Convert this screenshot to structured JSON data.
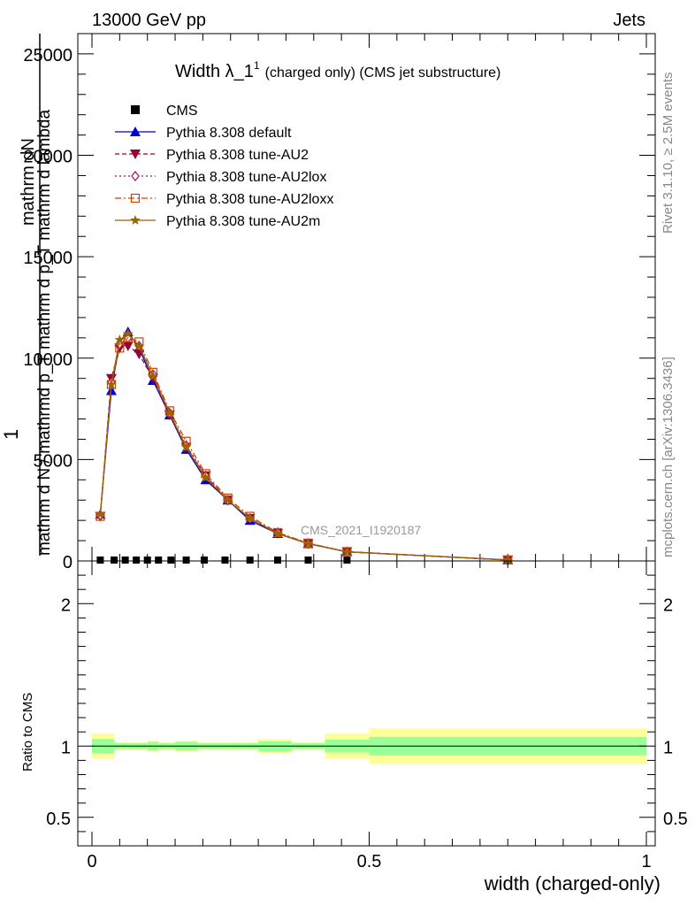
{
  "header": {
    "left": "13000 GeV pp",
    "right": "Jets"
  },
  "side_labels": {
    "rivet": "Rivet 3.1.10, ≥ 2.5M events",
    "mcplots": "mcplots.cern.ch [arXiv:1306.3436]"
  },
  "chart_data": [
    {
      "type": "line",
      "title": "Width λ_1",
      "title_sup": "1",
      "title_suffix": "(charged only) (CMS jet substructure)",
      "watermark": "CMS_2021_I1920187",
      "ylabel": {
        "prefix": "1",
        "numerator": "mathrm dN",
        "denominator": "mathrm d N / mathrmd p_T mathrm d p_T mathrm d lambda"
      },
      "ylim": [
        0,
        26000
      ],
      "yticks": [
        0,
        5000,
        10000,
        15000,
        20000,
        25000
      ],
      "ytick_labels": [
        "0",
        "5000",
        "10000",
        "15000",
        "20000",
        "25000"
      ],
      "xlim": [
        0,
        1
      ],
      "legend_position": "top-left",
      "bin_edges": [
        0,
        0.03,
        0.05,
        0.07,
        0.09,
        0.11,
        0.13,
        0.155,
        0.185,
        0.22,
        0.26,
        0.31,
        0.36,
        0.42,
        0.5,
        1.0
      ],
      "cms_x": [
        0.015,
        0.04,
        0.06,
        0.08,
        0.1,
        0.12,
        0.1425,
        0.17,
        0.2025,
        0.24,
        0.285,
        0.335,
        0.39,
        0.46
      ],
      "series": [
        {
          "name": "CMS",
          "color": "#000000",
          "marker": "square",
          "x": [
            0.015,
            0.04,
            0.06,
            0.08,
            0.1,
            0.12,
            0.1425,
            0.17,
            0.2025,
            0.24,
            0.285,
            0.335,
            0.39,
            0.46
          ],
          "values": [
            0,
            0,
            0,
            0,
            0,
            0,
            0,
            0,
            0,
            0,
            0,
            0,
            0,
            0
          ]
        },
        {
          "name": "Pythia 8.308 default",
          "color": "#0000cc",
          "marker": "triangle-up",
          "dash": "",
          "x": [
            0.015,
            0.035,
            0.05,
            0.065,
            0.085,
            0.11,
            0.14,
            0.17,
            0.205,
            0.245,
            0.285,
            0.335,
            0.39,
            0.46,
            0.75
          ],
          "values": [
            2300,
            8400,
            10800,
            11300,
            10500,
            8900,
            7200,
            5500,
            4000,
            3000,
            2000,
            1350,
            850,
            450,
            50
          ]
        },
        {
          "name": "Pythia 8.308 tune-AU2",
          "color": "#990033",
          "marker": "triangle-down",
          "dash": "5,3",
          "x": [
            0.015,
            0.035,
            0.05,
            0.065,
            0.085,
            0.11,
            0.14,
            0.17,
            0.205,
            0.245,
            0.285,
            0.335,
            0.39,
            0.46,
            0.75
          ],
          "values": [
            2200,
            9000,
            10500,
            10600,
            10200,
            9000,
            7200,
            5600,
            4200,
            3000,
            2100,
            1350,
            850,
            450,
            50
          ]
        },
        {
          "name": "Pythia 8.308 tune-AU2lox",
          "color": "#aa1155",
          "marker": "diamond-open",
          "dash": "2,3",
          "x": [
            0.015,
            0.035,
            0.05,
            0.065,
            0.085,
            0.11,
            0.14,
            0.17,
            0.205,
            0.245,
            0.285,
            0.335,
            0.39,
            0.46,
            0.75
          ],
          "values": [
            2250,
            8800,
            10700,
            11000,
            10600,
            9200,
            7300,
            5700,
            4200,
            3000,
            2100,
            1400,
            870,
            460,
            50
          ]
        },
        {
          "name": "Pythia 8.308 tune-AU2loxx",
          "color": "#cc4400",
          "marker": "square-open",
          "dash": "7,3,2,3",
          "x": [
            0.015,
            0.035,
            0.05,
            0.065,
            0.085,
            0.11,
            0.14,
            0.17,
            0.205,
            0.245,
            0.285,
            0.335,
            0.39,
            0.46,
            0.75
          ],
          "values": [
            2200,
            8700,
            10500,
            11000,
            10800,
            9300,
            7400,
            5900,
            4300,
            3100,
            2200,
            1400,
            880,
            460,
            50
          ]
        },
        {
          "name": "Pythia 8.308 tune-AU2m",
          "color": "#996600",
          "marker": "star",
          "dash": "",
          "x": [
            0.015,
            0.035,
            0.05,
            0.065,
            0.085,
            0.11,
            0.14,
            0.17,
            0.205,
            0.245,
            0.285,
            0.335,
            0.39,
            0.46,
            0.75
          ],
          "values": [
            2300,
            8700,
            10900,
            11200,
            10600,
            9100,
            7300,
            5600,
            4100,
            3000,
            2100,
            1350,
            860,
            450,
            50
          ]
        }
      ]
    },
    {
      "type": "area",
      "ylabel": "Ratio to CMS",
      "xlabel": "width (charged-only)",
      "ylim": [
        0.3,
        2.3
      ],
      "yticks": [
        0.5,
        1,
        2
      ],
      "ytick_labels": [
        "0.5",
        "1",
        "2"
      ],
      "xlim": [
        0,
        1
      ],
      "xticks": [
        0,
        0.5,
        1
      ],
      "xtick_labels": [
        "0",
        "0.5",
        "1"
      ],
      "band_bins": [
        {
          "lo": 0.0,
          "hi": 0.04,
          "inner": [
            0.95,
            1.05
          ],
          "outer": [
            0.91,
            1.09
          ]
        },
        {
          "lo": 0.04,
          "hi": 0.1,
          "inner": [
            0.98,
            1.02
          ],
          "outer": [
            0.97,
            1.03
          ]
        },
        {
          "lo": 0.1,
          "hi": 0.12,
          "inner": [
            0.97,
            1.03
          ],
          "outer": [
            0.96,
            1.04
          ]
        },
        {
          "lo": 0.12,
          "hi": 0.15,
          "inner": [
            0.98,
            1.02
          ],
          "outer": [
            0.97,
            1.03
          ]
        },
        {
          "lo": 0.15,
          "hi": 0.19,
          "inner": [
            0.97,
            1.03
          ],
          "outer": [
            0.96,
            1.04
          ]
        },
        {
          "lo": 0.19,
          "hi": 0.25,
          "inner": [
            0.98,
            1.02
          ],
          "outer": [
            0.97,
            1.03
          ]
        },
        {
          "lo": 0.25,
          "hi": 0.3,
          "inner": [
            0.98,
            1.02
          ],
          "outer": [
            0.97,
            1.03
          ]
        },
        {
          "lo": 0.3,
          "hi": 0.36,
          "inner": [
            0.965,
            1.035
          ],
          "outer": [
            0.95,
            1.05
          ]
        },
        {
          "lo": 0.36,
          "hi": 0.42,
          "inner": [
            0.98,
            1.02
          ],
          "outer": [
            0.97,
            1.03
          ]
        },
        {
          "lo": 0.42,
          "hi": 0.5,
          "inner": [
            0.955,
            1.045
          ],
          "outer": [
            0.91,
            1.09
          ]
        },
        {
          "lo": 0.5,
          "hi": 1.0,
          "inner": [
            0.935,
            1.065
          ],
          "outer": [
            0.875,
            1.125
          ]
        }
      ],
      "colors": {
        "inner": "#99ff99",
        "outer": "#ffff99"
      }
    }
  ]
}
